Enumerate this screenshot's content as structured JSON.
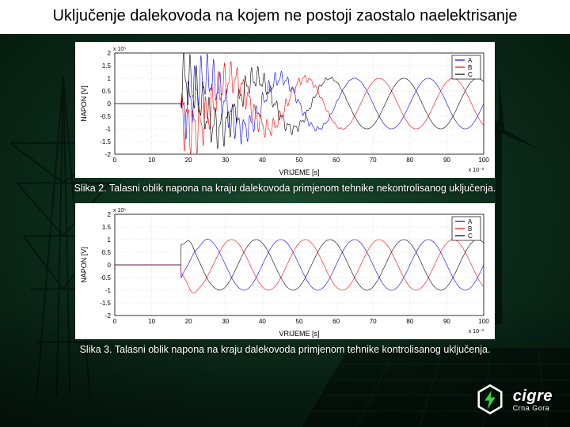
{
  "title": "Uključenje dalekovoda na kojem ne postoji zaostalo naelektrisanje",
  "caption1": "Slika 2. Talasni oblik napona na kraju dalekovoda primjenom tehnike nekontrolisanog uključenja.",
  "caption2": "Slika 3. Talasni oblik napona na kraju dalekovoda primjenom tehnike kontrolisanog uključenja.",
  "logo": {
    "brand": "cigre",
    "sub": "Crna Gora"
  },
  "chart_common": {
    "ylabel": "NAPON [V]",
    "xlabel": "VRIJEME [s]",
    "x_exp_label": "x 10⁻³",
    "y_exp_label": "x 10⁵",
    "xlim": [
      0,
      100
    ],
    "ylim": [
      -2,
      2
    ],
    "xtick_step": 10,
    "ytick_step": 0.5,
    "grid_color": "#c8c8c8",
    "background_color": "#ffffff",
    "axis_color": "#000000",
    "legend_items": [
      "A",
      "B",
      "C"
    ],
    "series_colors": {
      "A": "#0000ff",
      "B": "#ff0000",
      "C": "#000000"
    },
    "line_width": 0.6,
    "label_fontsize": 9,
    "tick_fontsize": 8
  },
  "chart1": {
    "type": "line-3phase-transient",
    "switch_time": 18,
    "transient_amplitude": 1.9,
    "transient_freq_factor": 12,
    "steady_amplitude": 1.0,
    "steady_period": 20,
    "transient_decay_end": 70,
    "phase_offsets_deg": {
      "A": 0,
      "B": -120,
      "C": 120
    }
  },
  "chart2": {
    "type": "line-3phase-controlled",
    "switch_time": 18,
    "transient_amplitude": 1.15,
    "transient_freq_factor": 3,
    "steady_amplitude": 1.0,
    "steady_period": 20,
    "transient_decay_end": 30,
    "phase_offsets_deg": {
      "A": 0,
      "B": -120,
      "C": 120
    }
  }
}
